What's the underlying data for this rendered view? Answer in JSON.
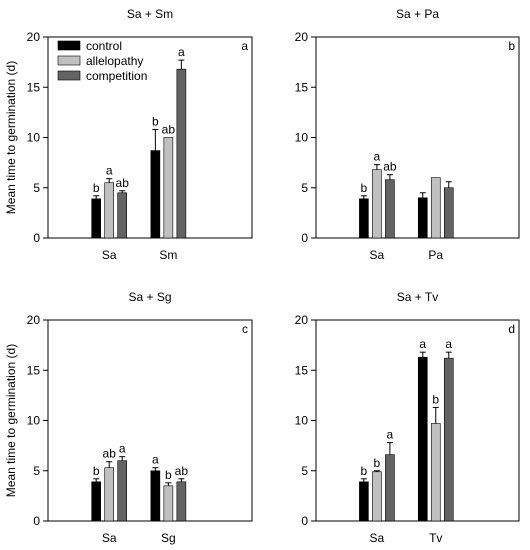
{
  "chart_data": [
    {
      "type": "bar",
      "title": "Sa + Sm",
      "panel_label": "a",
      "ylabel": "Mean time to germination (d)",
      "ylim": [
        0,
        20
      ],
      "yticks": [
        0,
        5,
        10,
        15,
        20
      ],
      "categories": [
        "Sa",
        "Sm"
      ],
      "legend": true,
      "legend_position": "top-left",
      "series": [
        {
          "name": "control",
          "color": "#000000",
          "values": [
            3.9,
            8.7
          ],
          "errors": [
            0.3,
            2.1
          ],
          "labels": [
            "b",
            "b"
          ]
        },
        {
          "name": "allelopathy",
          "color": "#c0c0c0",
          "values": [
            5.5,
            10.0
          ],
          "errors": [
            0.4,
            0.0
          ],
          "labels": [
            "a",
            "ab"
          ]
        },
        {
          "name": "competition",
          "color": "#636363",
          "values": [
            4.5,
            16.8
          ],
          "errors": [
            0.2,
            0.9
          ],
          "labels": [
            "ab",
            "a"
          ]
        }
      ]
    },
    {
      "type": "bar",
      "title": "Sa + Pa",
      "panel_label": "b",
      "ylabel": "",
      "ylim": [
        0,
        20
      ],
      "yticks": [
        0,
        5,
        10,
        15,
        20
      ],
      "categories": [
        "Sa",
        "Pa"
      ],
      "legend": false,
      "series": [
        {
          "name": "control",
          "color": "#000000",
          "values": [
            3.9,
            4.0
          ],
          "errors": [
            0.3,
            0.5
          ],
          "labels": [
            "b",
            ""
          ]
        },
        {
          "name": "allelopathy",
          "color": "#c0c0c0",
          "values": [
            6.8,
            6.0
          ],
          "errors": [
            0.5,
            0.0
          ],
          "labels": [
            "a",
            ""
          ]
        },
        {
          "name": "competition",
          "color": "#636363",
          "values": [
            5.8,
            5.0
          ],
          "errors": [
            0.5,
            0.6
          ],
          "labels": [
            "ab",
            ""
          ]
        }
      ]
    },
    {
      "type": "bar",
      "title": "Sa + Sg",
      "panel_label": "c",
      "ylabel": "Mean time to germination (d)",
      "ylim": [
        0,
        20
      ],
      "yticks": [
        0,
        5,
        10,
        15,
        20
      ],
      "categories": [
        "Sa",
        "Sg"
      ],
      "legend": false,
      "series": [
        {
          "name": "control",
          "color": "#000000",
          "values": [
            3.9,
            5.0
          ],
          "errors": [
            0.3,
            0.3
          ],
          "labels": [
            "b",
            "a"
          ]
        },
        {
          "name": "allelopathy",
          "color": "#c0c0c0",
          "values": [
            5.3,
            3.5
          ],
          "errors": [
            0.6,
            0.3
          ],
          "labels": [
            "ab",
            "b"
          ]
        },
        {
          "name": "competition",
          "color": "#636363",
          "values": [
            6.0,
            3.9
          ],
          "errors": [
            0.4,
            0.3
          ],
          "labels": [
            "a",
            "ab"
          ]
        }
      ]
    },
    {
      "type": "bar",
      "title": "Sa + Tv",
      "panel_label": "d",
      "ylabel": "",
      "ylim": [
        0,
        20
      ],
      "yticks": [
        0,
        5,
        10,
        15,
        20
      ],
      "categories": [
        "Sa",
        "Tv"
      ],
      "legend": false,
      "series": [
        {
          "name": "control",
          "color": "#000000",
          "values": [
            3.9,
            16.3
          ],
          "errors": [
            0.3,
            0.5
          ],
          "labels": [
            "b",
            "a"
          ]
        },
        {
          "name": "allelopathy",
          "color": "#c0c0c0",
          "values": [
            4.9,
            9.7
          ],
          "errors": [
            0.1,
            1.6
          ],
          "labels": [
            "b",
            "b"
          ]
        },
        {
          "name": "competition",
          "color": "#636363",
          "values": [
            6.6,
            16.2
          ],
          "errors": [
            1.2,
            0.6
          ],
          "labels": [
            "a",
            "a"
          ]
        }
      ]
    }
  ]
}
